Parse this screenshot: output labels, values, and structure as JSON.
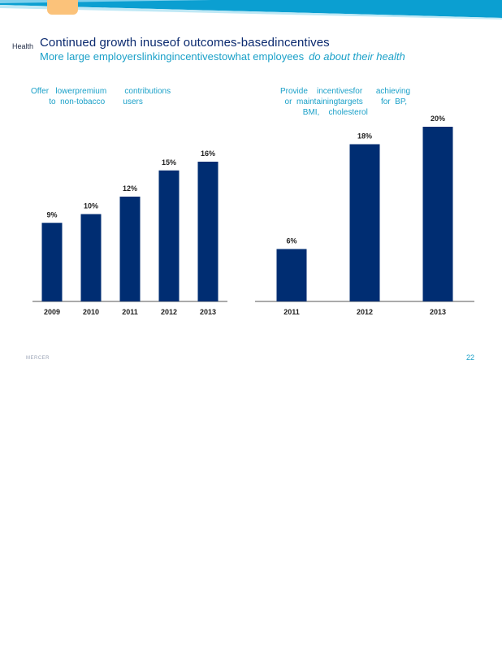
{
  "header": {
    "section_label": "Health",
    "title": "Continued  growth  inuseof  outcomes-basedincentives",
    "subtitle_main": "More large employerslinkingincentivestowhat employees",
    "subtitle_em": "do  about   their  health"
  },
  "colors": {
    "bar": "#002d72",
    "accent": "#1aa0c8",
    "axis": "#555555"
  },
  "chart_data": [
    {
      "type": "bar",
      "title": "Offer   lowerpremium        contributions\n        to  non-tobacco        users",
      "categories": [
        "2009",
        "2010",
        "2011",
        "2012",
        "2013"
      ],
      "values": [
        9,
        10,
        12,
        15,
        16
      ],
      "value_labels": [
        "9%",
        "10%",
        "12%",
        "15%",
        "16%"
      ],
      "ylim": [
        0,
        20
      ]
    },
    {
      "type": "bar",
      "title": "Provide    incentivesfor      achieving\n  or  maintainingtargets        for  BP,\n          BMI,    cholesterol",
      "categories": [
        "2011",
        "2012",
        "2013"
      ],
      "values": [
        6,
        18,
        20
      ],
      "value_labels": [
        "6%",
        "18%",
        "20%"
      ],
      "ylim": [
        0,
        20
      ]
    }
  ],
  "footer": {
    "brand": "MERCER",
    "page_number": "22"
  }
}
